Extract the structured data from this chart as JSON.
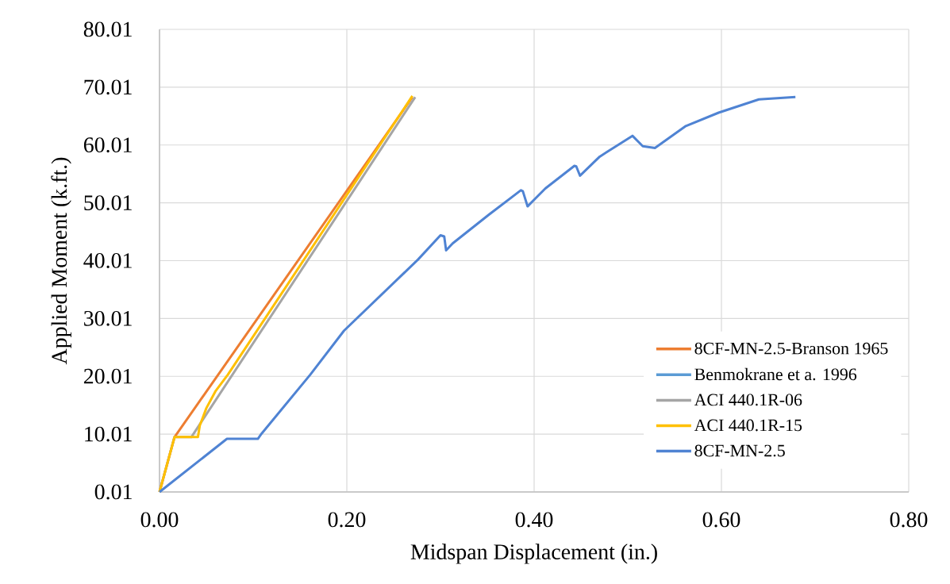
{
  "chart_data": {
    "type": "line",
    "xlabel": "Midspan Displacement (in.)",
    "ylabel": "Applied Moment (k.ft.)",
    "xlim": [
      0,
      0.8
    ],
    "ylim": [
      0.01,
      80.01
    ],
    "xticks": [
      {
        "value": 0,
        "label": "0.00"
      },
      {
        "value": 0.2,
        "label": "0.20"
      },
      {
        "value": 0.4,
        "label": "0.40"
      },
      {
        "value": 0.6,
        "label": "0.60"
      },
      {
        "value": 0.8,
        "label": "0.80"
      }
    ],
    "yticks": [
      0.01,
      10.01,
      20.01,
      30.01,
      40.01,
      50.01,
      60.01,
      70.01,
      80.01
    ],
    "grid": true,
    "legend": "bottom right",
    "series": [
      {
        "name": "8CF-MN-2.5-Branson 1965",
        "color": "#ed7d31",
        "x": [
          0,
          0.016,
          0.27
        ],
        "values": [
          0.01,
          9.5,
          68.3
        ]
      },
      {
        "name": "Benmokrane et a. 1996",
        "color": "#5b9bd5",
        "values": [
          null
        ]
      },
      {
        "name": "ACI 440.1R-06",
        "color": "#a5a5a5",
        "x": [
          0,
          0.016,
          0.034,
          0.273
        ],
        "values": [
          0.01,
          9.5,
          9.5,
          68.3
        ]
      },
      {
        "name": "ACI 440.1R-15",
        "color": "#ffc000",
        "x": [
          0,
          0.016,
          0.041,
          0.043,
          0.05,
          0.06,
          0.073,
          0.27
        ],
        "values": [
          0.01,
          9.5,
          9.5,
          11.5,
          14.5,
          17.5,
          20.3,
          68.5
        ]
      },
      {
        "name": "8CF-MN-2.5",
        "color": "#4f83d3",
        "x": [
          0,
          0.072,
          0.105,
          0.109,
          0.161,
          0.197,
          0.276,
          0.3,
          0.304,
          0.306,
          0.313,
          0.352,
          0.386,
          0.388,
          0.393,
          0.412,
          0.443,
          0.445,
          0.449,
          0.47,
          0.505,
          0.516,
          0.529,
          0.562,
          0.597,
          0.64,
          0.679
        ],
        "values": [
          0.01,
          9.2,
          9.2,
          10.1,
          20.3,
          27.9,
          40.2,
          44.4,
          44.2,
          41.8,
          43.0,
          48.0,
          52.2,
          52.0,
          49.4,
          52.5,
          56.4,
          56.3,
          54.7,
          58.0,
          61.6,
          59.8,
          59.5,
          63.3,
          65.6,
          67.9,
          68.3
        ]
      }
    ]
  }
}
